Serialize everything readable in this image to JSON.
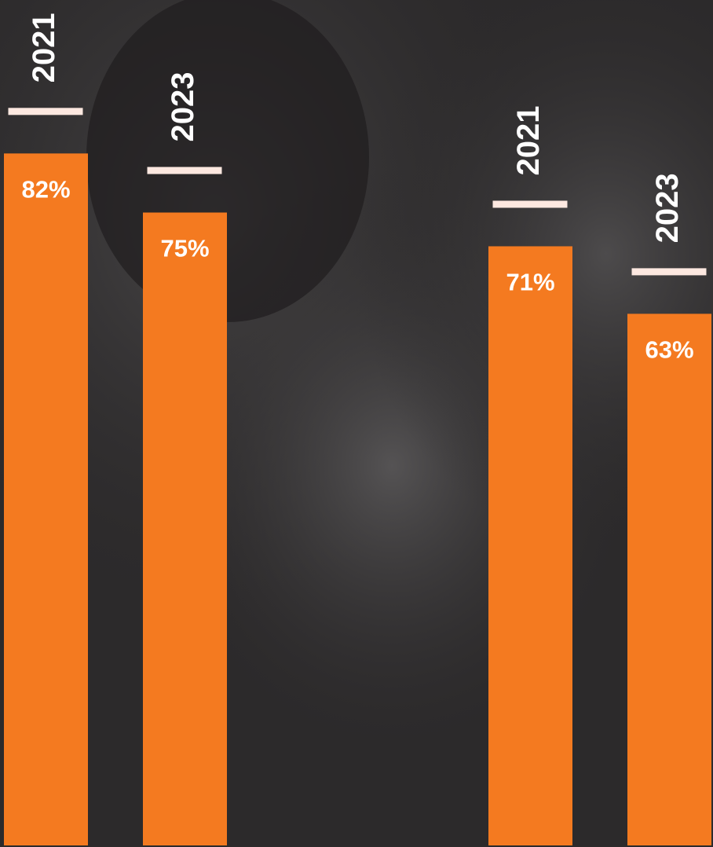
{
  "chart_data": {
    "type": "bar",
    "categories": [
      "2021",
      "2023",
      "2021",
      "2023"
    ],
    "values": [
      82,
      75,
      71,
      63
    ],
    "value_labels": [
      "82%",
      "75%",
      "71%",
      "63%"
    ],
    "color": "#f47a20",
    "ylim": [
      0,
      100
    ]
  }
}
